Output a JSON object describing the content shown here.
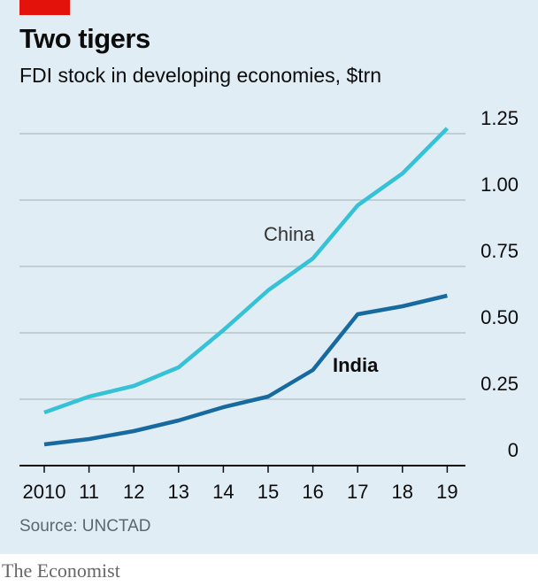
{
  "header": {
    "title": "Two tigers",
    "subtitle": "FDI stock in developing economies, $trn"
  },
  "footer": {
    "source": "Source: UNCTAD",
    "brand": "The Economist"
  },
  "colors": {
    "background": "#e1edf5",
    "accent": "#e3120b",
    "china": "#36c2d6",
    "india": "#176aa0",
    "gridline": "#b6c4cc",
    "axis": "#0c0c0c"
  },
  "chart_data": {
    "type": "line",
    "title": "Two tigers",
    "subtitle": "FDI stock in developing economies, $trn",
    "x": [
      2010,
      2011,
      2012,
      2013,
      2014,
      2015,
      2016,
      2017,
      2018,
      2019
    ],
    "x_tick_labels": [
      "2010",
      "11",
      "12",
      "13",
      "14",
      "15",
      "16",
      "17",
      "18",
      "19"
    ],
    "y_ticks": [
      0,
      0.25,
      0.5,
      0.75,
      1.0,
      1.25
    ],
    "y_tick_labels": [
      "0",
      "0.25",
      "0.50",
      "0.75",
      "1.00",
      "1.25"
    ],
    "ylim": [
      0,
      1.33
    ],
    "y_axis_side": "right",
    "grid": true,
    "legend": "inline labels",
    "series": [
      {
        "name": "China",
        "color": "#36c2d6",
        "values": [
          0.2,
          0.26,
          0.3,
          0.37,
          0.51,
          0.66,
          0.78,
          0.98,
          1.1,
          1.27
        ]
      },
      {
        "name": "India",
        "color": "#176aa0",
        "values": [
          0.08,
          0.1,
          0.13,
          0.17,
          0.22,
          0.26,
          0.36,
          0.57,
          0.6,
          0.64
        ]
      }
    ],
    "source": "Source: UNCTAD"
  }
}
